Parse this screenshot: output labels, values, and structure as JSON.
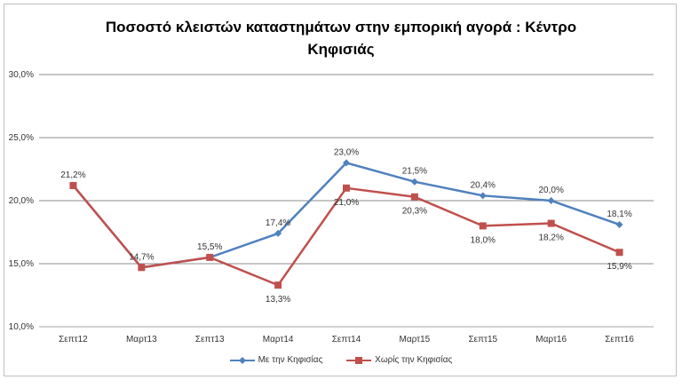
{
  "chart_data": {
    "type": "line",
    "title": "Ποσοστό κλειστών καταστημάτων στην εμπορική αγορά : Κέντρο Κηφισιάς",
    "categories": [
      "Σεπτ12",
      "Μαρτ13",
      "Σεπτ13",
      "Μαρτ14",
      "Σεπτ14",
      "Μαρτ15",
      "Σεπτ15",
      "Μαρτ16",
      "Σεπτ16"
    ],
    "ylim": [
      10,
      30
    ],
    "yticks": [
      "10,0%",
      "15,0%",
      "20,0%",
      "25,0%",
      "30,0%"
    ],
    "grid": true,
    "legend_placement": "bottom",
    "series": [
      {
        "name": "Με την Κηφισίας",
        "color": "#4f81bd",
        "marker": "diamond",
        "values": [
          21.2,
          14.7,
          15.5,
          17.4,
          23.0,
          21.5,
          20.4,
          20.0,
          18.1
        ],
        "labels": [
          null,
          null,
          null,
          "17,4%",
          "23,0%",
          "21,5%",
          "20,4%",
          "20,0%",
          "18,1%"
        ],
        "label_side": [
          "above",
          "above",
          "above",
          "above",
          "above",
          "above",
          "above",
          "above",
          "above"
        ]
      },
      {
        "name": "Χωρίς την Κηφισίας",
        "color": "#c0504d",
        "marker": "square",
        "values": [
          21.2,
          14.7,
          15.5,
          13.3,
          21.0,
          20.3,
          18.0,
          18.2,
          15.9
        ],
        "labels": [
          "21,2%",
          "14,7%",
          "15,5%",
          "13,3%",
          "21,0%",
          "20,3%",
          "18,0%",
          "18,2%",
          "15,9%"
        ],
        "label_side": [
          "above",
          "above",
          "above",
          "below",
          "below",
          "below",
          "below",
          "below",
          "below"
        ]
      }
    ]
  }
}
